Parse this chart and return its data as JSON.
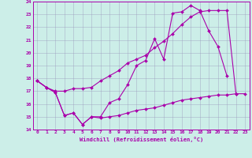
{
  "xlabel": "Windchill (Refroidissement éolien,°C)",
  "background_color": "#cceee8",
  "grid_color": "#9999bb",
  "line_color": "#aa00aa",
  "xlim": [
    -0.5,
    23.5
  ],
  "ylim": [
    14,
    24
  ],
  "yticks": [
    14,
    15,
    16,
    17,
    18,
    19,
    20,
    21,
    22,
    23,
    24
  ],
  "xticks": [
    0,
    1,
    2,
    3,
    4,
    5,
    6,
    7,
    8,
    9,
    10,
    11,
    12,
    13,
    14,
    15,
    16,
    17,
    18,
    19,
    20,
    21,
    22,
    23
  ],
  "line1_x": [
    0,
    1,
    2,
    3,
    4,
    5,
    6,
    7,
    8,
    9,
    10,
    11,
    12,
    13,
    14,
    15,
    16,
    17,
    18,
    19,
    20,
    21
  ],
  "line1_y": [
    17.8,
    17.3,
    16.9,
    15.1,
    15.3,
    14.4,
    15.0,
    15.0,
    16.1,
    16.4,
    17.5,
    19.0,
    19.4,
    21.1,
    19.5,
    23.1,
    23.2,
    23.7,
    23.3,
    21.7,
    20.5,
    18.2
  ],
  "line2_x": [
    0,
    1,
    2,
    3,
    4,
    5,
    6,
    7,
    8,
    9,
    10,
    11,
    12,
    13,
    14,
    15,
    16,
    17,
    18,
    19,
    20,
    21,
    22
  ],
  "line2_y": [
    17.8,
    17.3,
    17.0,
    17.0,
    17.2,
    17.2,
    17.3,
    17.8,
    18.2,
    18.6,
    19.2,
    19.5,
    19.8,
    20.4,
    20.9,
    21.5,
    22.2,
    22.8,
    23.2,
    23.3,
    23.3,
    23.3,
    16.8
  ],
  "line3_x": [
    0,
    1,
    2,
    3,
    4,
    5,
    6,
    7,
    8,
    9,
    10,
    11,
    12,
    13,
    14,
    15,
    16,
    17,
    18,
    19,
    20,
    21,
    22,
    23
  ],
  "line3_y": [
    17.8,
    17.3,
    16.9,
    15.1,
    15.3,
    14.4,
    15.0,
    14.9,
    15.0,
    15.1,
    15.3,
    15.5,
    15.6,
    15.7,
    15.9,
    16.1,
    16.3,
    16.4,
    16.5,
    16.6,
    16.7,
    16.7,
    16.8,
    16.8
  ]
}
